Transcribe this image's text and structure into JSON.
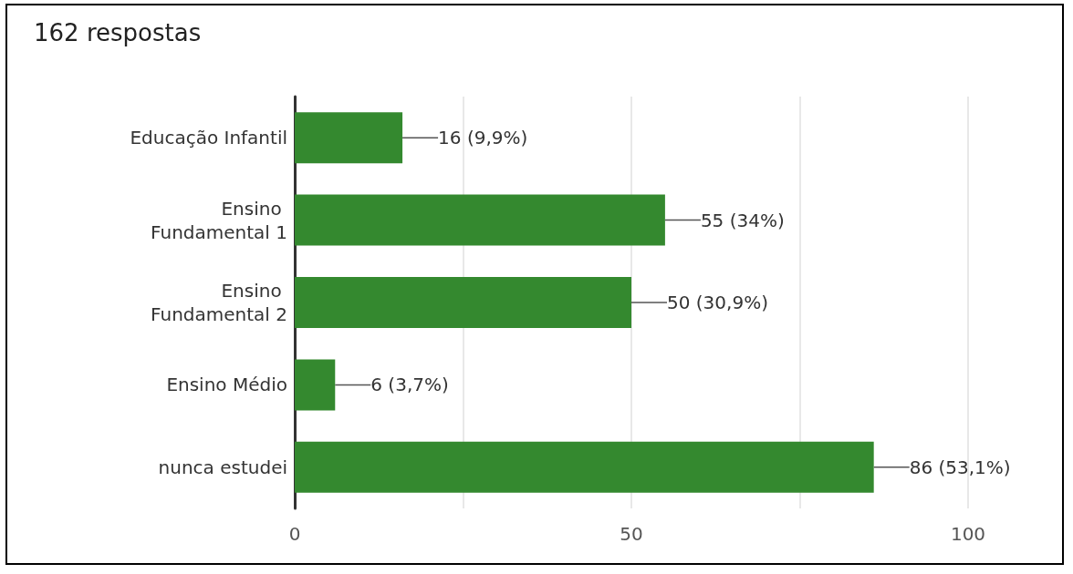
{
  "chart_data": {
    "type": "bar",
    "orientation": "horizontal",
    "title": "162 respostas",
    "categories": [
      "Educação Infantil",
      "Ensino Fundamental 1",
      "Ensino Fundamental 2",
      "Ensino Médio",
      "nunca estudei"
    ],
    "values": [
      16,
      55,
      50,
      6,
      86
    ],
    "value_labels": [
      "16 (9,9%)",
      "55 (34%)",
      "50 (30,9%)",
      "6 (3,7%)",
      "86 (53,1%)"
    ],
    "color": "#34892f",
    "xlim": [
      0,
      100
    ],
    "xticks": [
      0,
      {
        "value": 25,
        "label": null
      },
      50,
      {
        "value": 75,
        "label": null
      },
      100
    ],
    "grid": "x"
  }
}
